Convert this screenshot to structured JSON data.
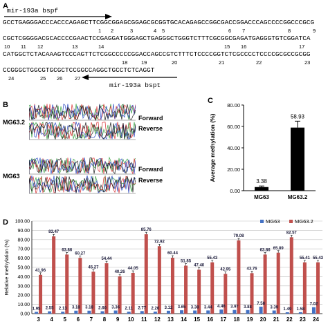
{
  "panel_a": {
    "letter": "A",
    "primer_forward": "mir-193a bspf",
    "primer_reverse": "mir-193a bspt",
    "seq_lines": [
      "GCCTGAGGGACCCACCCAGAGCTTCGGCGGAGCGGAGCGCGGTGCACAGAGCCGGCGACCGGACCCAGCCCCGGCCCGCG",
      "CGCTCGGGGACGCACCCCGAACTCCGAGGATGGGAGCTGAGGGCTGGGTCTTTCGCGGCGAGATGAGGGTGTCGGATCA",
      "CATGGCTCTACAAAGTCCCAGTTCTCGGCCCCCGGACCAGCCGTCTTTCTCCCCGGTCTCGCCCCTCCCCGCGCCGCGG",
      "CCGGGCTGGCGTGCGCTCCGGCCAGGCTGCCTCTCAGGT"
    ],
    "site_numbers_line1": [
      "1",
      "2",
      "3",
      "4",
      "5",
      "6",
      "7",
      "8",
      "9"
    ],
    "site_numbers_line2": [
      "10",
      "11",
      "12",
      "13",
      "14",
      "15",
      "16",
      "17"
    ],
    "site_numbers_line3": [
      "18",
      "19",
      "20",
      "21",
      "22",
      "23"
    ],
    "site_numbers_line4": [
      "24",
      "25",
      "26",
      "27"
    ]
  },
  "panel_b": {
    "letter": "B",
    "samples": [
      {
        "name": "MG63.2",
        "forward": "Forward",
        "reverse": "Reverse"
      },
      {
        "name": "MG63",
        "forward": "Forward",
        "reverse": "Reverse"
      }
    ]
  },
  "panel_c": {
    "letter": "C",
    "chart_data": {
      "type": "bar",
      "categories": [
        "MG63",
        "MG63.2"
      ],
      "values": [
        3.38,
        58.93
      ],
      "value_labels": [
        "3.38",
        "58.93"
      ],
      "error": [
        1.0,
        6.0
      ],
      "ylabel": "Average methylation (%)",
      "ylim": [
        0,
        80
      ],
      "yticks": [
        "0.00",
        "20.00",
        "40.00",
        "60.00",
        "80.00"
      ],
      "colors": {
        "bar": "#000000"
      }
    }
  },
  "panel_d": {
    "letter": "D",
    "chart_data": {
      "type": "bar",
      "categories": [
        "3",
        "4",
        "5",
        "6",
        "7",
        "8",
        "9",
        "10",
        "11",
        "12",
        "13",
        "14",
        "15",
        "16",
        "17",
        "18",
        "19",
        "20",
        "21",
        "22",
        "23",
        "24"
      ],
      "series": [
        {
          "name": "MG63",
          "color": "#4472c4",
          "values": [
            1.95,
            2.55,
            2.13,
            3.18,
            3.18,
            2.6,
            3.36,
            2.11,
            2.77,
            2.2,
            3.12,
            3.65,
            3.38,
            3.44,
            4.46,
            3.97,
            3.88,
            7.58,
            3.39,
            1.49,
            1.58,
            7.02
          ],
          "labels": [
            "1.95",
            "2.55",
            "2.13",
            "3.18",
            "3.18",
            "2.60",
            "3.36",
            "2.11",
            "2.77",
            "2.20",
            "3.12",
            "3.65",
            "3.38",
            "3.44",
            "4.46",
            "3.97",
            "3.88",
            "7.58",
            "3.39",
            "1.49",
            "1.58",
            "7.02"
          ]
        },
        {
          "name": "MG63.2",
          "color": "#c0504d",
          "values": [
            41.96,
            83.47,
            63.86,
            60.27,
            45.27,
            54.44,
            40.26,
            44.05,
            85.76,
            72.92,
            60.44,
            51.85,
            47.4,
            55.43,
            42.95,
            79.08,
            43.76,
            63.86,
            65.89,
            82.57,
            55.41,
            55.43
          ],
          "labels": [
            "41.96",
            "83.47",
            "63.86",
            "60.27",
            "45.27",
            "54.44",
            "40.26",
            "44.05",
            "85.76",
            "72.92",
            "60.44",
            "51.85",
            "47.40",
            "55.43",
            "42.95",
            "79.08",
            "43.76",
            "63.86",
            "65.89",
            "82.57",
            "55.41",
            "55.43"
          ]
        }
      ],
      "ylabel": "Relative methylation (%)",
      "ylim": [
        0,
        100
      ],
      "yticks": [
        "0.00",
        "10.00",
        "20.00",
        "30.00",
        "40.00",
        "50.00",
        "60.00",
        "70.00",
        "80.00",
        "90.00",
        "100.00"
      ],
      "legend_position": "top-right"
    }
  }
}
